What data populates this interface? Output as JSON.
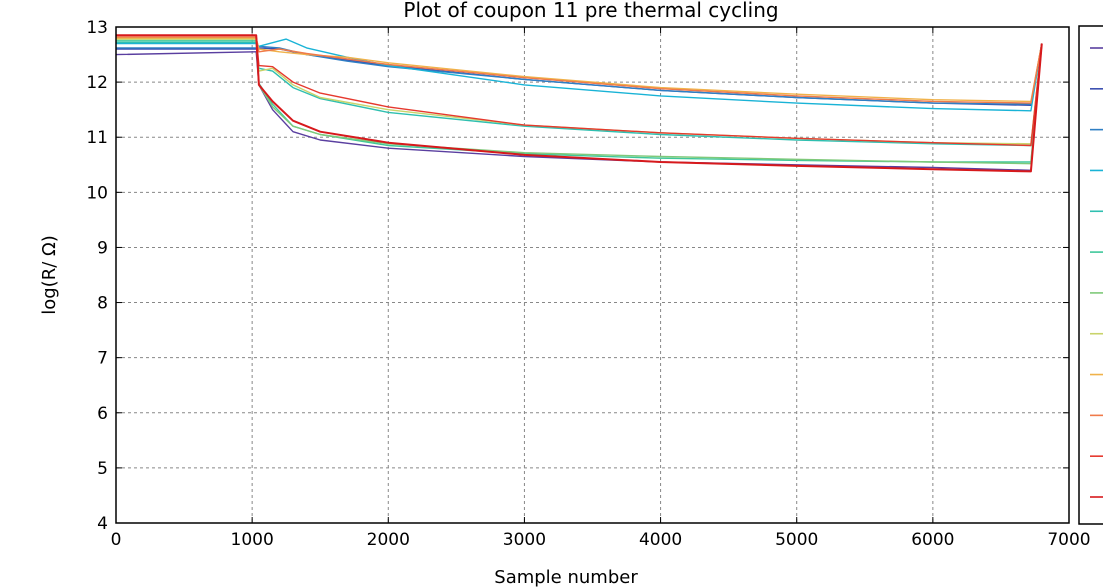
{
  "chart_data": {
    "type": "line",
    "title": "Plot of coupon 11 pre thermal cycling",
    "xlabel": "Sample number",
    "ylabel": "log(R/ Ω)",
    "xlim": [
      0,
      7000
    ],
    "ylim": [
      4,
      13
    ],
    "xticks": [
      "0",
      "1000",
      "2000",
      "3000",
      "4000",
      "5000",
      "6000",
      "7000"
    ],
    "yticks": [
      "4",
      "5",
      "6",
      "7",
      "8",
      "9",
      "10",
      "11",
      "12",
      "13"
    ],
    "grid": true,
    "legend_position": "right, outside plot (partially cropped)",
    "series": [
      {
        "color": "#5a3fa0",
        "x": [
          0,
          1030,
          1050,
          1150,
          1300,
          1500,
          2000,
          3000,
          4000,
          5000,
          6000,
          6720,
          6800
        ],
        "y": [
          12.5,
          12.55,
          11.95,
          11.5,
          11.1,
          10.95,
          10.8,
          10.65,
          10.55,
          10.5,
          10.45,
          10.4,
          12.7
        ]
      },
      {
        "color": "#3b4fb0",
        "x": [
          0,
          1030,
          1050,
          1200,
          1400,
          1700,
          2000,
          3000,
          4000,
          5000,
          6000,
          6720,
          6800
        ],
        "y": [
          12.6,
          12.6,
          12.62,
          12.6,
          12.5,
          12.4,
          12.3,
          12.05,
          11.85,
          11.72,
          11.62,
          11.58,
          12.7
        ]
      },
      {
        "color": "#2f7fc4",
        "x": [
          0,
          1030,
          1050,
          1200,
          1400,
          1700,
          2000,
          3000,
          4000,
          5000,
          6000,
          6720,
          6800
        ],
        "y": [
          12.62,
          12.62,
          12.65,
          12.62,
          12.5,
          12.38,
          12.28,
          12.05,
          11.85,
          11.72,
          11.62,
          11.6,
          12.7
        ]
      },
      {
        "color": "#19b3d6",
        "x": [
          0,
          1030,
          1050,
          1250,
          1400,
          1700,
          2000,
          3000,
          4000,
          5000,
          6000,
          6720,
          6800
        ],
        "y": [
          12.7,
          12.7,
          12.65,
          12.78,
          12.62,
          12.45,
          12.3,
          11.95,
          11.75,
          11.62,
          11.52,
          11.48,
          12.7
        ]
      },
      {
        "color": "#2fbfb0",
        "x": [
          0,
          1030,
          1050,
          1150,
          1300,
          1500,
          2000,
          3000,
          4000,
          5000,
          6000,
          6720,
          6800
        ],
        "y": [
          12.72,
          12.72,
          12.25,
          12.2,
          11.9,
          11.7,
          11.45,
          11.2,
          11.05,
          10.95,
          10.88,
          10.85,
          12.7
        ]
      },
      {
        "color": "#3fc79a",
        "x": [
          0,
          1030,
          1050,
          1150,
          1300,
          1500,
          2000,
          3000,
          4000,
          5000,
          6000,
          6720,
          6800
        ],
        "y": [
          12.75,
          12.75,
          11.98,
          11.6,
          11.2,
          11.05,
          10.85,
          10.7,
          10.62,
          10.58,
          10.55,
          10.55,
          12.7
        ]
      },
      {
        "color": "#7fc97a",
        "x": [
          0,
          1030,
          1050,
          1150,
          1300,
          1500,
          2000,
          3000,
          4000,
          5000,
          6000,
          6720,
          6800
        ],
        "y": [
          12.78,
          12.78,
          11.95,
          11.55,
          11.2,
          11.05,
          10.88,
          10.72,
          10.65,
          10.6,
          10.55,
          10.52,
          12.7
        ]
      },
      {
        "color": "#c9d36a",
        "x": [
          0,
          1030,
          1050,
          1150,
          1300,
          1500,
          2000,
          3000,
          4000,
          5000,
          6000,
          6720,
          6800
        ],
        "y": [
          12.78,
          12.78,
          12.2,
          12.25,
          11.95,
          11.72,
          11.5,
          11.22,
          11.08,
          10.98,
          10.9,
          10.88,
          12.7
        ]
      },
      {
        "color": "#f0b24a",
        "x": [
          0,
          1030,
          1050,
          1200,
          1400,
          1700,
          2000,
          3000,
          4000,
          5000,
          6000,
          6720,
          6800
        ],
        "y": [
          12.8,
          12.8,
          12.6,
          12.55,
          12.5,
          12.45,
          12.35,
          12.1,
          11.9,
          11.78,
          11.68,
          11.65,
          12.7
        ]
      },
      {
        "color": "#f07a4a",
        "x": [
          0,
          1030,
          1050,
          1200,
          1400,
          1700,
          2000,
          3000,
          4000,
          5000,
          6000,
          6720,
          6800
        ],
        "y": [
          12.82,
          12.82,
          12.55,
          12.6,
          12.52,
          12.42,
          12.32,
          12.08,
          11.88,
          11.75,
          11.65,
          11.62,
          12.7
        ]
      },
      {
        "color": "#e6392e",
        "x": [
          0,
          1030,
          1050,
          1150,
          1300,
          1500,
          2000,
          3000,
          4000,
          5000,
          6000,
          6720,
          6800
        ],
        "y": [
          12.85,
          12.85,
          12.3,
          12.28,
          12.0,
          11.8,
          11.55,
          11.22,
          11.08,
          10.98,
          10.9,
          10.85,
          12.7
        ]
      },
      {
        "color": "#d7191c",
        "x": [
          0,
          1030,
          1050,
          1150,
          1300,
          1500,
          2000,
          3000,
          4000,
          5000,
          6000,
          6720,
          6800
        ],
        "y": [
          12.85,
          12.85,
          11.95,
          11.65,
          11.3,
          11.1,
          10.9,
          10.68,
          10.55,
          10.48,
          10.42,
          10.38,
          12.7
        ]
      }
    ]
  }
}
